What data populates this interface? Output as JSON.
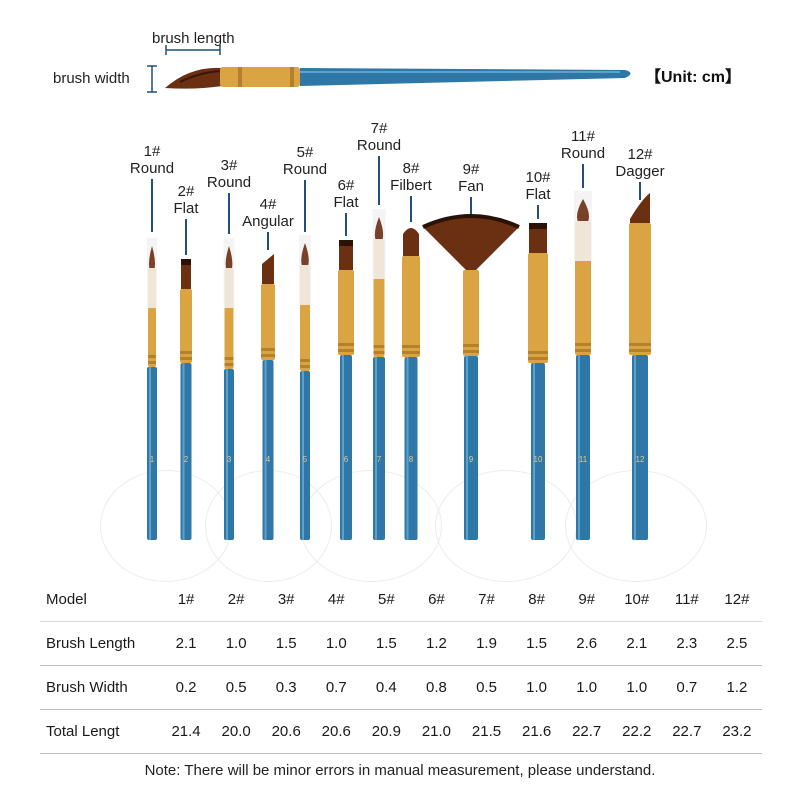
{
  "sample_brush": {
    "length_label": "brush length",
    "width_label": "brush width",
    "unit_label": "【Unit: cm】"
  },
  "brushes": [
    {
      "num": "1#",
      "type": "Round",
      "handle": "1"
    },
    {
      "num": "2#",
      "type": "Flat",
      "handle": "2"
    },
    {
      "num": "3#",
      "type": "Round",
      "handle": "3"
    },
    {
      "num": "4#",
      "type": "Angular",
      "handle": "4"
    },
    {
      "num": "5#",
      "type": "Round",
      "handle": "5"
    },
    {
      "num": "6#",
      "type": "Flat",
      "handle": "6"
    },
    {
      "num": "7#",
      "type": "Round",
      "handle": "7"
    },
    {
      "num": "8#",
      "type": "Filbert",
      "handle": "8"
    },
    {
      "num": "9#",
      "type": "Fan",
      "handle": "9"
    },
    {
      "num": "10#",
      "type": "Flat",
      "handle": "10"
    },
    {
      "num": "11#",
      "type": "Round",
      "handle": "11"
    },
    {
      "num": "12#",
      "type": "Dagger",
      "handle": "12"
    }
  ],
  "table": {
    "rows": [
      {
        "label": "Model",
        "values": [
          "1#",
          "2#",
          "3#",
          "4#",
          "5#",
          "6#",
          "7#",
          "8#",
          "9#",
          "10#",
          "11#",
          "12#"
        ]
      },
      {
        "label": "Brush Length",
        "values": [
          "2.1",
          "1.0",
          "1.5",
          "1.0",
          "1.5",
          "1.2",
          "1.9",
          "1.5",
          "2.6",
          "2.1",
          "2.3",
          "2.5"
        ]
      },
      {
        "label": "Brush Width",
        "values": [
          "0.2",
          "0.5",
          "0.3",
          "0.7",
          "0.4",
          "0.8",
          "0.5",
          "1.0",
          "1.0",
          "1.0",
          "0.7",
          "1.2"
        ]
      },
      {
        "label": "Total Lengt",
        "values": [
          "21.4",
          "20.0",
          "20.6",
          "20.6",
          "20.9",
          "21.0",
          "21.5",
          "21.6",
          "22.7",
          "22.2",
          "22.7",
          "23.2"
        ]
      }
    ]
  },
  "note": "Note: There will be minor errors in manual measurement, please understand.",
  "colors": {
    "handle_blue": "#2f77a6",
    "ferrule_gold": "#d9a441",
    "bristle_brown": "#6b2f12",
    "protector_white": "#f2f2f2",
    "leader_blue": "#1f4f7a"
  }
}
